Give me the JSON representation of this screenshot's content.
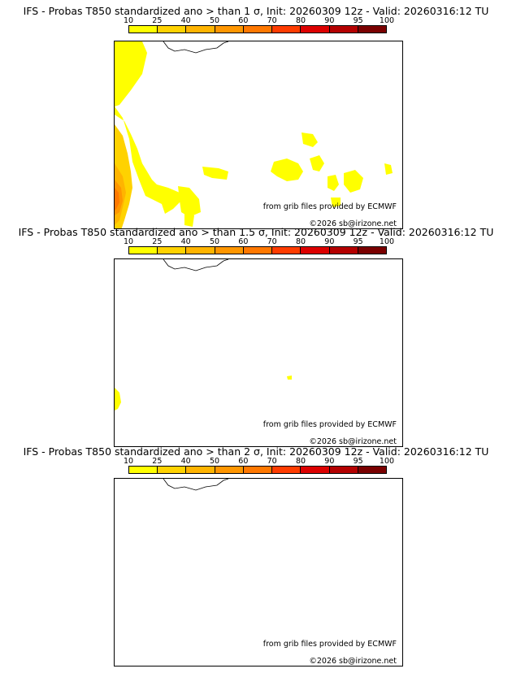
{
  "colorbar": {
    "ticks": [
      "10",
      "25",
      "40",
      "50",
      "60",
      "70",
      "80",
      "90",
      "95",
      "100"
    ],
    "colors": [
      "#ffff00",
      "#ffd200",
      "#ffb400",
      "#ff9600",
      "#ff7800",
      "#ff3c00",
      "#dc0000",
      "#b40000",
      "#7a0000"
    ]
  },
  "panels": [
    {
      "title": "IFS - Probas T850  standardized ano > than 1 σ, Init: 20260309 12z - Valid: 20260316:12 TU",
      "credit_source": "from grib files provided by ECMWF",
      "credit_copy": "©2026 sb@irizone.net"
    },
    {
      "title": "IFS - Probas T850  standardized ano > than 1.5 σ, Init: 20260309 12z - Valid: 20260316:12 TU",
      "credit_source": "from grib files provided by ECMWF",
      "credit_copy": "©2026 sb@irizone.net"
    },
    {
      "title": "IFS - Probas T850  standardized ano > than 2 σ, Init: 20260309 12z - Valid: 20260316:12 TU",
      "credit_source": "from grib files provided by ECMWF",
      "credit_copy": "©2026 sb@irizone.net"
    }
  ],
  "style": {
    "coast": "#000000",
    "rivers": "#3333cc",
    "borders": "#aaaaaa"
  }
}
